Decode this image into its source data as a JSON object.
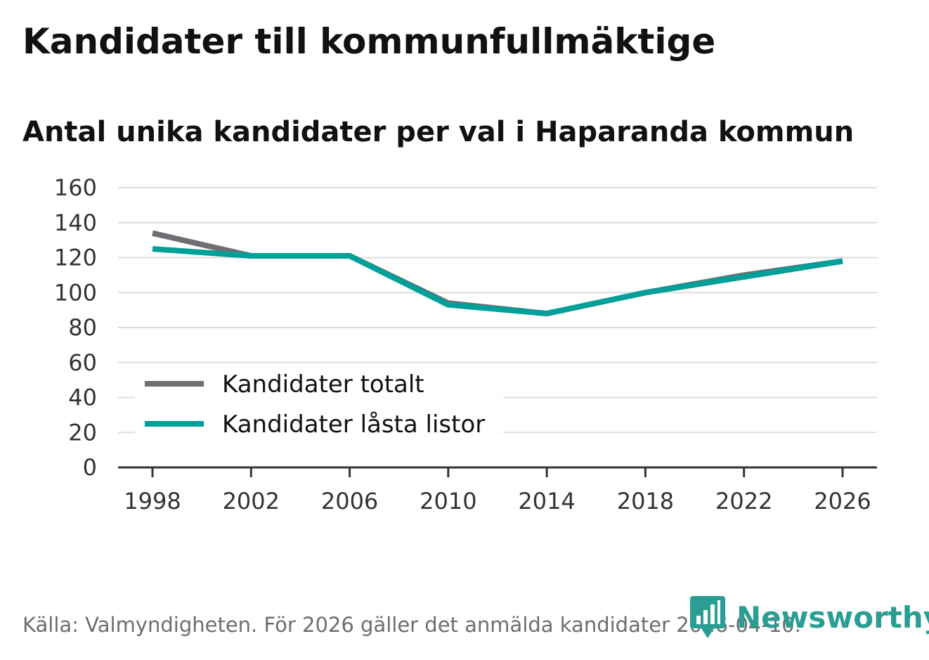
{
  "header": {
    "title": "Kandidater till kommunfullmäktige",
    "subtitle": "Antal unika kandidater per val i Haparanda kommun"
  },
  "chart_data": {
    "type": "line",
    "title": "Kandidater till kommunfullmäktige",
    "subtitle": "Antal unika kandidater per val i Haparanda kommun",
    "xlabel": "",
    "ylabel": "",
    "x": [
      1998,
      2002,
      2006,
      2010,
      2014,
      2018,
      2022,
      2026
    ],
    "x_ticks": [
      "1998",
      "2002",
      "2006",
      "2010",
      "2014",
      "2018",
      "2022",
      "2026"
    ],
    "y_ticks": [
      "0",
      "20",
      "40",
      "60",
      "80",
      "100",
      "120",
      "140",
      "160"
    ],
    "ylim": [
      0,
      160
    ],
    "grid": true,
    "legend_position": "bottom-left",
    "series": [
      {
        "name": "Kandidater totalt",
        "color": "#6e6e73",
        "values": [
          134,
          121,
          121,
          94,
          88,
          100,
          110,
          118
        ]
      },
      {
        "name": "Kandidater låsta listor",
        "color": "#00a09a",
        "values": [
          125,
          121,
          121,
          93,
          88,
          100,
          109,
          118
        ]
      }
    ]
  },
  "footer": {
    "source": "Källa: Valmyndigheten. För 2026 gäller det anmälda kandidater 2026-04-10.",
    "logo_text": "Newsworthy",
    "logo_icon": "newsworthy-chart-bubble-icon",
    "logo_color": "#2b9d92"
  }
}
